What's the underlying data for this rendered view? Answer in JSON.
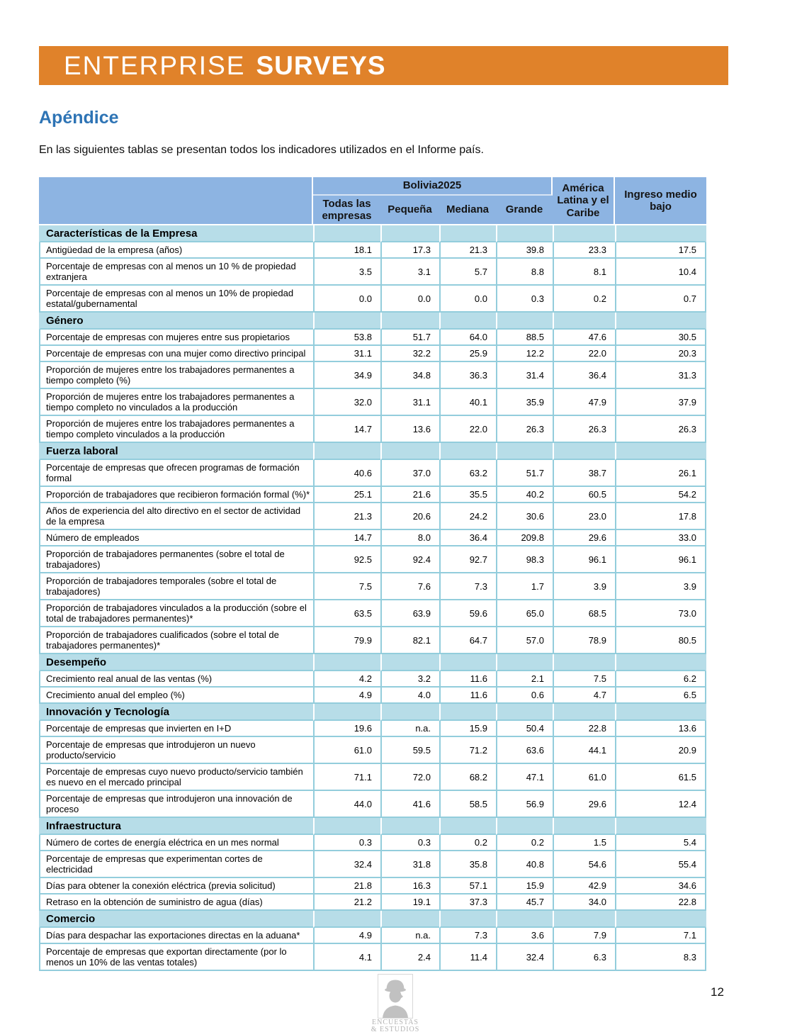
{
  "colors": {
    "banner_orange": "#E0822A",
    "heading_blue": "#2E74B5",
    "header_blue": "#8DB4E2",
    "section_blue": "#B7DDE8",
    "grid_cyan": "#93CDDC"
  },
  "banner": {
    "word1": "ENTERPRISE",
    "word2": "SURVEYS"
  },
  "heading": "Apéndice",
  "intro": "En las siguientes tablas se presentan todos los indicadores utilizados en el Informe país.",
  "table": {
    "group_header": "Bolivia2025",
    "columns": [
      "Todas las empresas",
      "Pequeña",
      "Mediana",
      "Grande",
      "América Latina y el Caribe",
      "Ingreso medio bajo"
    ],
    "sections": [
      {
        "title": "Características de la Empresa",
        "rows": [
          {
            "label": "Antigüedad de la empresa (años)",
            "values": [
              "18.1",
              "17.3",
              "21.3",
              "39.8",
              "23.3",
              "17.5"
            ]
          },
          {
            "label": "Porcentaje de empresas con al menos un 10 % de propiedad extranjera",
            "values": [
              "3.5",
              "3.1",
              "5.7",
              "8.8",
              "8.1",
              "10.4"
            ]
          },
          {
            "label": "Porcentaje de empresas con al menos un 10% de propiedad estatal/gubernamental",
            "values": [
              "0.0",
              "0.0",
              "0.0",
              "0.3",
              "0.2",
              "0.7"
            ]
          }
        ]
      },
      {
        "title": "Género",
        "rows": [
          {
            "label": "Porcentaje de empresas con mujeres entre sus propietarios",
            "values": [
              "53.8",
              "51.7",
              "64.0",
              "88.5",
              "47.6",
              "30.5"
            ]
          },
          {
            "label": "Porcentaje de empresas con una mujer como directivo principal",
            "values": [
              "31.1",
              "32.2",
              "25.9",
              "12.2",
              "22.0",
              "20.3"
            ]
          },
          {
            "label": "Proporción de mujeres entre los trabajadores permanentes a tiempo completo (%)",
            "values": [
              "34.9",
              "34.8",
              "36.3",
              "31.4",
              "36.4",
              "31.3"
            ]
          },
          {
            "label": "Proporción de mujeres entre los trabajadores permanentes a tiempo completo no vinculados a la producción",
            "values": [
              "32.0",
              "31.1",
              "40.1",
              "35.9",
              "47.9",
              "37.9"
            ]
          },
          {
            "label": "Proporción de mujeres entre los trabajadores permanentes a tiempo completo vinculados a la producción",
            "values": [
              "14.7",
              "13.6",
              "22.0",
              "26.3",
              "26.3",
              "26.3"
            ]
          }
        ]
      },
      {
        "title": "Fuerza laboral",
        "rows": [
          {
            "label": "Porcentaje de empresas que ofrecen programas de formación formal",
            "values": [
              "40.6",
              "37.0",
              "63.2",
              "51.7",
              "38.7",
              "26.1"
            ]
          },
          {
            "label": "Proporción de trabajadores que recibieron formación formal (%)*",
            "values": [
              "25.1",
              "21.6",
              "35.5",
              "40.2",
              "60.5",
              "54.2"
            ]
          },
          {
            "label": "Años de experiencia del alto directivo en el sector de actividad de la empresa",
            "values": [
              "21.3",
              "20.6",
              "24.2",
              "30.6",
              "23.0",
              "17.8"
            ]
          },
          {
            "label": "Número de empleados",
            "values": [
              "14.7",
              "8.0",
              "36.4",
              "209.8",
              "29.6",
              "33.0"
            ]
          },
          {
            "label": "Proporción de trabajadores permanentes (sobre el total de trabajadores)",
            "values": [
              "92.5",
              "92.4",
              "92.7",
              "98.3",
              "96.1",
              "96.1"
            ]
          },
          {
            "label": "Proporción de trabajadores temporales (sobre el total de trabajadores)",
            "values": [
              "7.5",
              "7.6",
              "7.3",
              "1.7",
              "3.9",
              "3.9"
            ]
          },
          {
            "label": "Proporción de trabajadores vinculados a la producción (sobre el total de trabajadores permanentes)*",
            "values": [
              "63.5",
              "63.9",
              "59.6",
              "65.0",
              "68.5",
              "73.0"
            ]
          },
          {
            "label": "Proporción de trabajadores cualificados (sobre el total de trabajadores permanentes)*",
            "values": [
              "79.9",
              "82.1",
              "64.7",
              "57.0",
              "78.9",
              "80.5"
            ]
          }
        ]
      },
      {
        "title": "Desempeño",
        "rows": [
          {
            "label": "Crecimiento real anual de las ventas (%)",
            "values": [
              "4.2",
              "3.2",
              "11.6",
              "2.1",
              "7.5",
              "6.2"
            ]
          },
          {
            "label": "Crecimiento anual del empleo (%)",
            "values": [
              "4.9",
              "4.0",
              "11.6",
              "0.6",
              "4.7",
              "6.5"
            ]
          }
        ]
      },
      {
        "title": "Innovación y Tecnología",
        "rows": [
          {
            "label": "Porcentaje de empresas que invierten en I+D",
            "values": [
              "19.6",
              "n.a.",
              "15.9",
              "50.4",
              "22.8",
              "13.6"
            ]
          },
          {
            "label": "Porcentaje de empresas que introdujeron un nuevo producto/servicio",
            "values": [
              "61.0",
              "59.5",
              "71.2",
              "63.6",
              "44.1",
              "20.9"
            ]
          },
          {
            "label": "Porcentaje de empresas cuyo nuevo producto/servicio también es nuevo en el mercado principal",
            "values": [
              "71.1",
              "72.0",
              "68.2",
              "47.1",
              "61.0",
              "61.5"
            ]
          },
          {
            "label": "Porcentaje de empresas que introdujeron una innovación de proceso",
            "values": [
              "44.0",
              "41.6",
              "58.5",
              "56.9",
              "29.6",
              "12.4"
            ]
          }
        ]
      },
      {
        "title": "Infraestructura",
        "rows": [
          {
            "label": "Número de cortes de energía eléctrica en un mes normal",
            "values": [
              "0.3",
              "0.3",
              "0.2",
              "0.2",
              "1.5",
              "5.4"
            ]
          },
          {
            "label": "Porcentaje de empresas que experimentan cortes de electricidad",
            "values": [
              "32.4",
              "31.8",
              "35.8",
              "40.8",
              "54.6",
              "55.4"
            ]
          },
          {
            "label": "Días para obtener la conexión eléctrica (previa solicitud)",
            "values": [
              "21.8",
              "16.3",
              "57.1",
              "15.9",
              "42.9",
              "34.6"
            ]
          },
          {
            "label": "Retraso en la obtención de suministro de agua (días)",
            "values": [
              "21.2",
              "19.1",
              "37.3",
              "45.7",
              "34.0",
              "22.8"
            ]
          }
        ]
      },
      {
        "title": "Comercio",
        "rows": [
          {
            "label": "Días para despachar las exportaciones directas en la aduana*",
            "values": [
              "4.9",
              "n.a.",
              "7.3",
              "3.6",
              "7.9",
              "7.1"
            ]
          },
          {
            "label": "Porcentaje de empresas que exportan directamente (por lo menos un 10% de las ventas totales)",
            "values": [
              "4.1",
              "2.4",
              "11.4",
              "32.4",
              "6.3",
              "8.3"
            ]
          }
        ]
      }
    ]
  },
  "footer": {
    "page_number": "12",
    "logo_caption_line1": "ENCUESTAS",
    "logo_caption_line2": "& ESTUDIOS"
  }
}
